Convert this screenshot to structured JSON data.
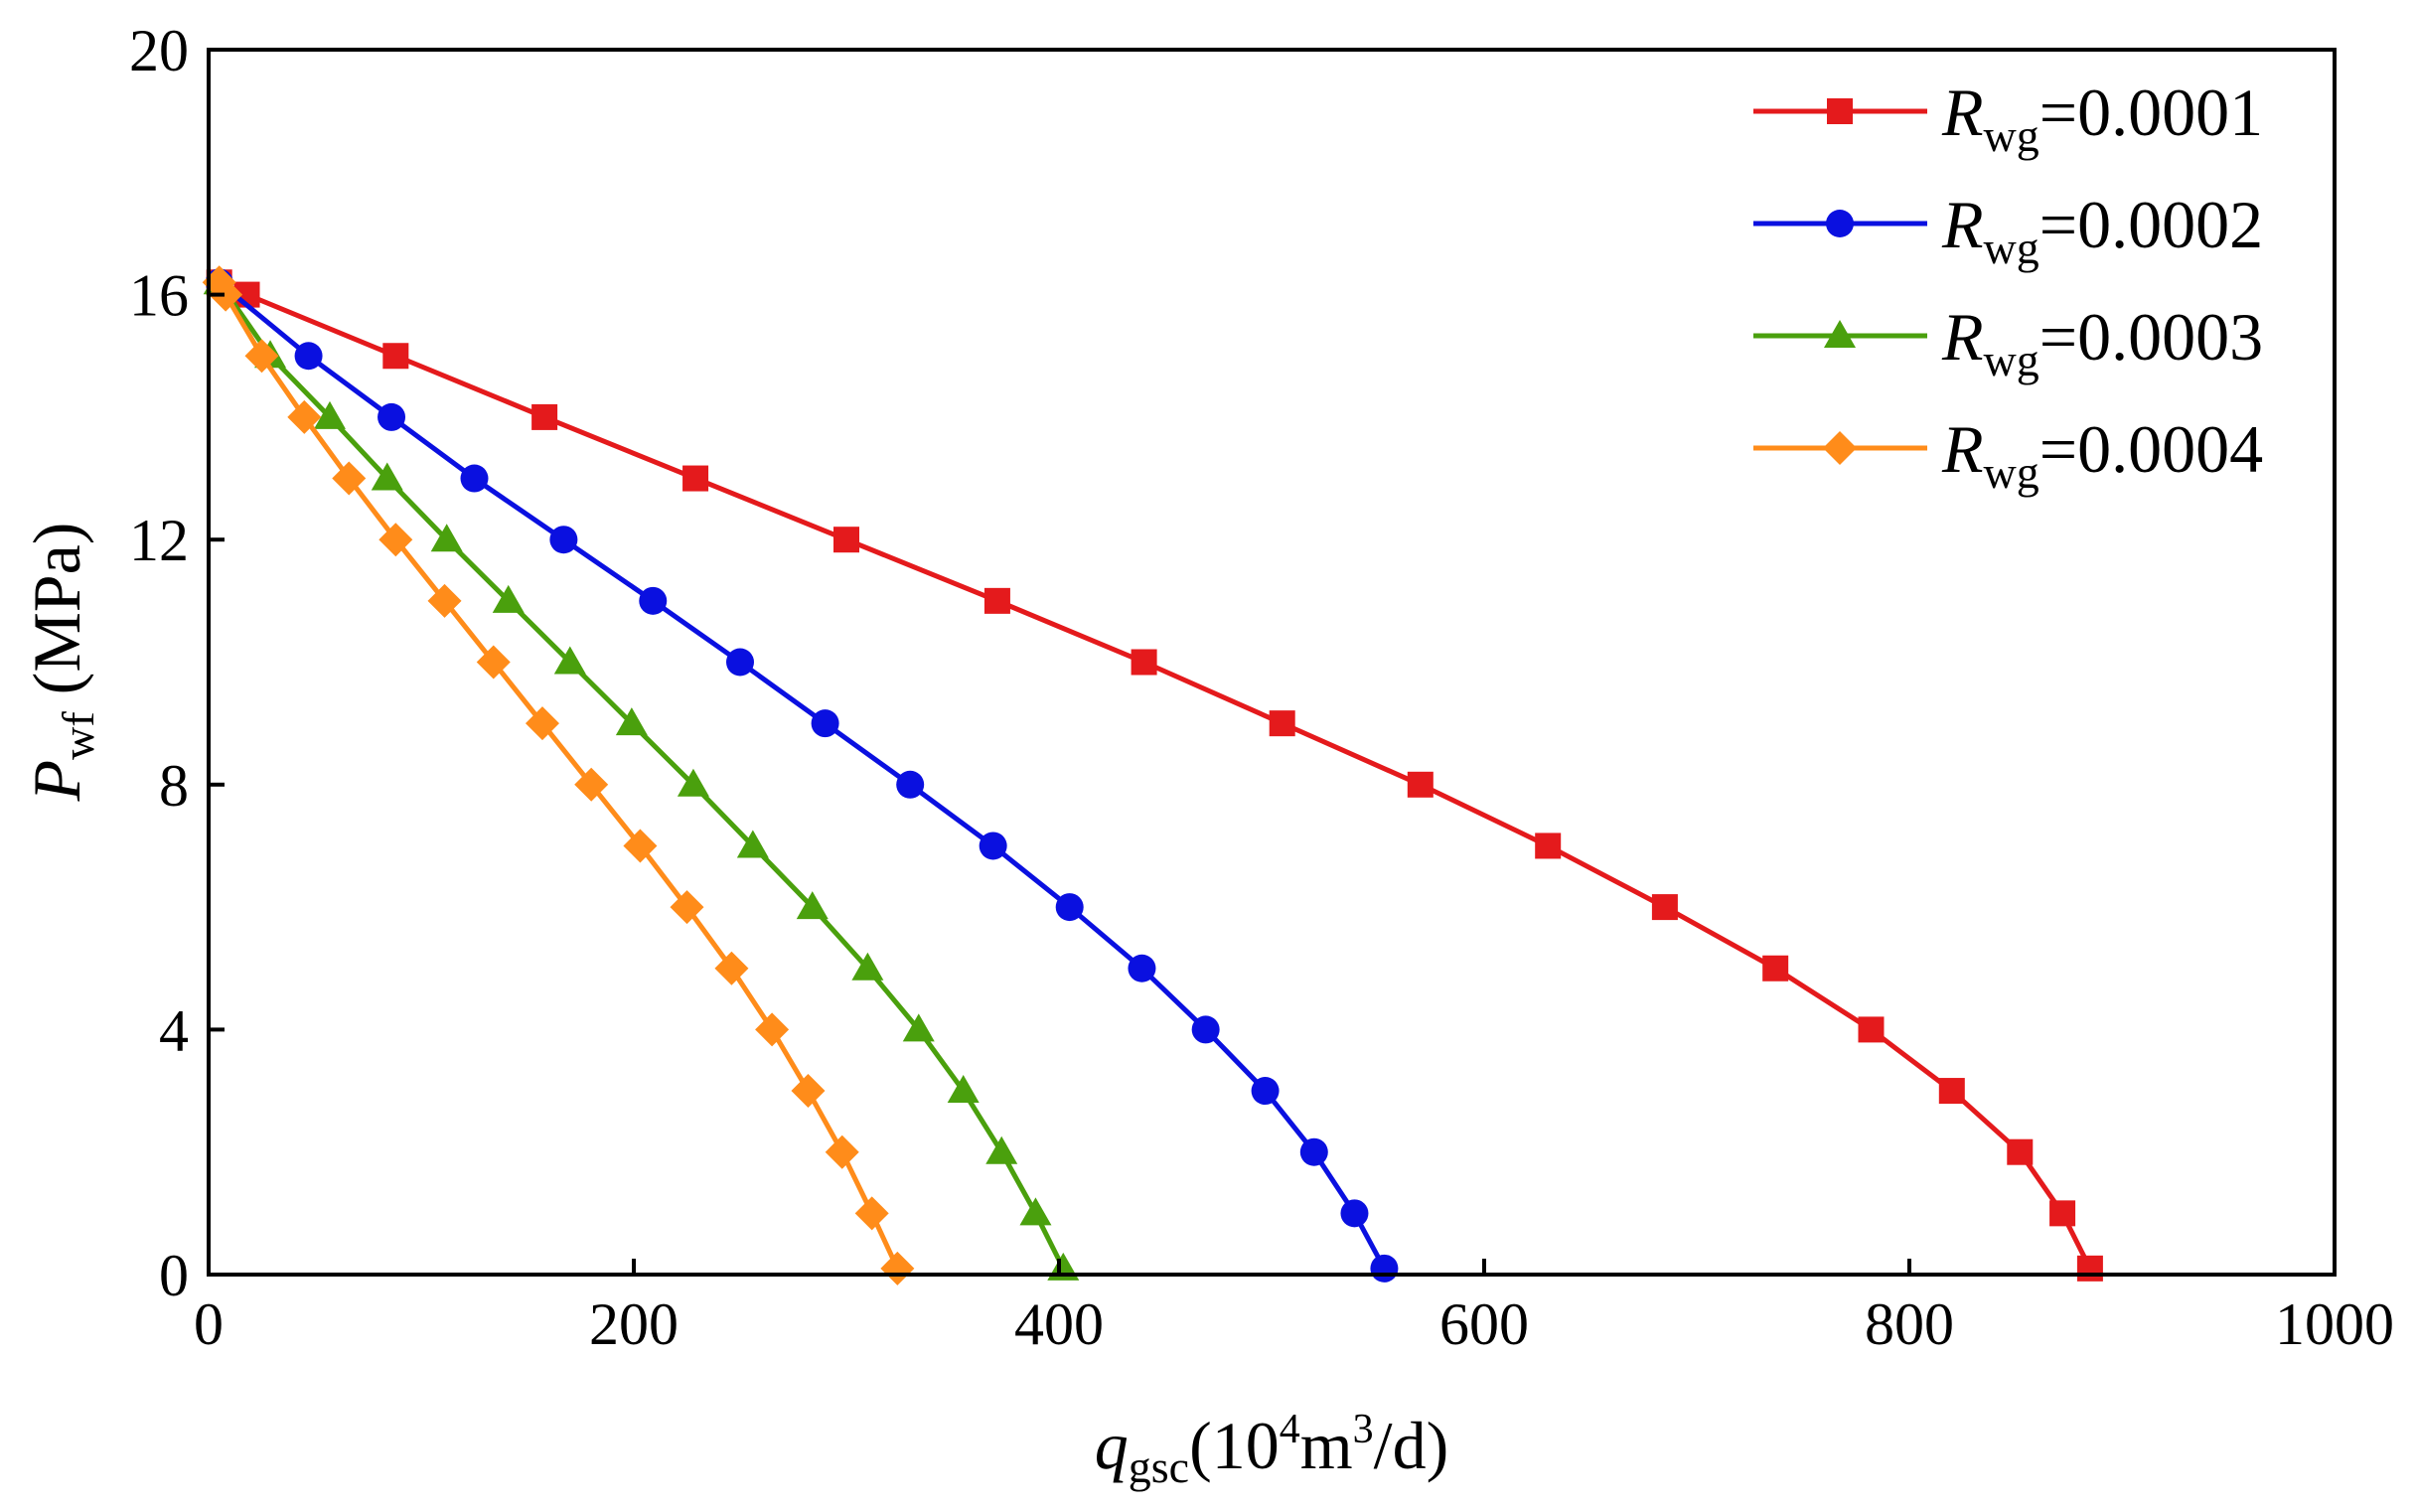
{
  "chart_data": {
    "type": "line",
    "title": "",
    "xlabel": {
      "main": "q",
      "sub": "gsc",
      "unit_open": "(10",
      "unit_sup1": "4",
      "unit_mid": "m",
      "unit_sup2": "3",
      "unit_close": "/d)"
    },
    "ylabel": {
      "main": "P",
      "sub": "wf",
      "unit": " (MPa)"
    },
    "xlim": [
      0,
      1000
    ],
    "ylim": [
      0,
      20
    ],
    "xticks": [
      0,
      200,
      400,
      600,
      800,
      1000
    ],
    "yticks": [
      0,
      4,
      8,
      12,
      16,
      20
    ],
    "grid": false,
    "legend_position": "top-right",
    "series": [
      {
        "name": "R_wg=0.0001",
        "legend_main": "R",
        "legend_sub": "wg",
        "legend_value": "=0.0001",
        "color": "#e41a1c",
        "marker": "square",
        "x": [
          5,
          18,
          88,
          158,
          229,
          300,
          371,
          440,
          505,
          570,
          630,
          685,
          737,
          782,
          820,
          852,
          872,
          885
        ],
        "y": [
          16.2,
          16,
          15,
          14,
          13,
          12,
          11,
          10,
          9,
          8,
          7,
          6,
          5,
          4,
          3,
          2,
          1,
          0.1
        ]
      },
      {
        "name": "R_wg=0.0002",
        "legend_main": "R",
        "legend_sub": "wg",
        "legend_value": "=0.0002",
        "color": "#0a10e0",
        "marker": "circle",
        "x": [
          5,
          47,
          86,
          125,
          167,
          209,
          250,
          290,
          330,
          369,
          405,
          439,
          469,
          497,
          520,
          539,
          553
        ],
        "y": [
          16.2,
          15,
          14,
          13,
          12,
          11,
          10,
          9,
          8,
          7,
          6,
          5,
          4,
          3,
          2,
          1,
          0.1
        ]
      },
      {
        "name": "R_wg=0.0003",
        "legend_main": "R",
        "legend_sub": "wg",
        "legend_value": "=0.0003",
        "color": "#4aa00d",
        "marker": "triangle",
        "x": [
          5,
          29,
          57,
          84,
          112,
          141,
          170,
          199,
          228,
          256,
          284,
          310,
          334,
          355,
          373,
          389,
          402
        ],
        "y": [
          16.2,
          15,
          14,
          13,
          12,
          11,
          10,
          9,
          8,
          7,
          6,
          5,
          4,
          3,
          2,
          1,
          0.1
        ]
      },
      {
        "name": "R_wg=0.0004",
        "legend_main": "R",
        "legend_sub": "wg",
        "legend_value": "=0.0004",
        "color": "#ff8c1a",
        "marker": "diamond",
        "x": [
          5,
          8,
          25,
          45,
          66,
          88,
          111,
          134,
          157,
          180,
          203,
          225,
          246,
          265,
          282,
          298,
          312,
          324
        ],
        "y": [
          16.2,
          16,
          15,
          14,
          13,
          12,
          11,
          10,
          9,
          8,
          7,
          6,
          5,
          4,
          3,
          2,
          1,
          0.1
        ]
      }
    ]
  }
}
